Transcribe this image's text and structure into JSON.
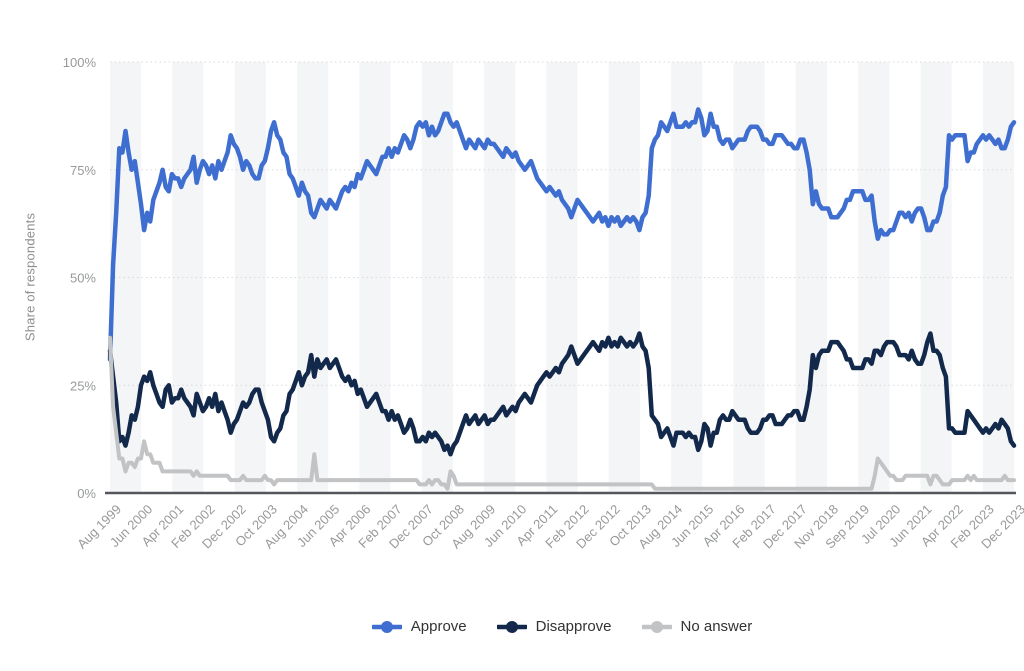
{
  "y_axis": {
    "title": "Share of respondents",
    "tick_labels": [
      "0%",
      "25%",
      "50%",
      "75%",
      "100%"
    ]
  },
  "chart_data": {
    "type": "line",
    "title": "",
    "xlabel": "",
    "ylabel": "Share of respondents",
    "ylim": [
      0,
      100
    ],
    "yticks": [
      0,
      25,
      50,
      75,
      100
    ],
    "grid": "horizontal-dotted",
    "background_bands": "alternating vertical stripes",
    "legend_position": "bottom-center",
    "x_range": "Aug 1999 - Dec 2023, monthly",
    "x_tick_labels": [
      "Aug 1999",
      "Jun 2000",
      "Apr 2001",
      "Feb 2002",
      "Dec 2002",
      "Oct 2003",
      "Aug 2004",
      "Jun 2005",
      "Apr 2006",
      "Feb 2007",
      "Dec 2007",
      "Oct 2008",
      "Aug 2009",
      "Jun 2010",
      "Apr 2011",
      "Feb 2012",
      "Dec 2012",
      "Oct 2013",
      "Aug 2014",
      "Jun 2015",
      "Apr 2016",
      "Feb 2017",
      "Dec 2017",
      "Nov 2018",
      "Sep 2019",
      "Jul 2020",
      "Jun 2021",
      "Apr 2022",
      "Feb 2023",
      "Dec 2023"
    ],
    "colors": {
      "band": "#f4f5f7",
      "grid": "#dadada",
      "axis": "#53575c",
      "tick_text": "#97999b",
      "legend_text": "#333333"
    },
    "series": [
      {
        "name": "Approve",
        "color": "#3e6fd0",
        "width": 4.5,
        "values": [
          31,
          53,
          65,
          80,
          79,
          84,
          79,
          75,
          77,
          72,
          67,
          61,
          65,
          63,
          68,
          70,
          72,
          75,
          71,
          70,
          74,
          73,
          73,
          71,
          73,
          74,
          75,
          78,
          72,
          75,
          77,
          76,
          74,
          76,
          73,
          77,
          75,
          77,
          79,
          83,
          81,
          80,
          78,
          75,
          77,
          76,
          74,
          73,
          73,
          76,
          77,
          80,
          84,
          86,
          83,
          82,
          79,
          78,
          74,
          73,
          71,
          69,
          72,
          70,
          69,
          65,
          64,
          66,
          68,
          67,
          66,
          68,
          67,
          66,
          68,
          70,
          71,
          70,
          72,
          71,
          74,
          73,
          75,
          77,
          76,
          75,
          74,
          76,
          78,
          78,
          80,
          78,
          80,
          79,
          81,
          83,
          82,
          80,
          82,
          85,
          86,
          85,
          86,
          83,
          85,
          83,
          84,
          86,
          88,
          88,
          86,
          85,
          86,
          84,
          82,
          80,
          82,
          81,
          80,
          82,
          81,
          80,
          82,
          81,
          81,
          80,
          79,
          78,
          80,
          79,
          78,
          79,
          77,
          76,
          75,
          76,
          77,
          75,
          73,
          72,
          71,
          70,
          71,
          70,
          69,
          70,
          68,
          67,
          66,
          64,
          66,
          68,
          67,
          66,
          65,
          64,
          63,
          64,
          65,
          63,
          64,
          62,
          64,
          63,
          64,
          62,
          63,
          64,
          63,
          64,
          63,
          61,
          64,
          65,
          69,
          80,
          82,
          83,
          86,
          85,
          84,
          86,
          88,
          85,
          85,
          85,
          86,
          85,
          86,
          86,
          89,
          87,
          83,
          84,
          88,
          85,
          85,
          82,
          81,
          82,
          82,
          80,
          81,
          82,
          82,
          82,
          84,
          85,
          85,
          85,
          84,
          82,
          82,
          81,
          81,
          83,
          83,
          83,
          82,
          81,
          81,
          80,
          80,
          82,
          82,
          79,
          75,
          67,
          70,
          67,
          66,
          66,
          66,
          64,
          64,
          64,
          65,
          66,
          68,
          68,
          70,
          70,
          70,
          70,
          68,
          68,
          69,
          63,
          59,
          61,
          60,
          60,
          61,
          61,
          63,
          65,
          65,
          64,
          65,
          63,
          65,
          66,
          66,
          64,
          61,
          61,
          63,
          63,
          65,
          69,
          71,
          83,
          82,
          83,
          83,
          83,
          83,
          77,
          79,
          79,
          81,
          82,
          83,
          82,
          83,
          82,
          81,
          82,
          80,
          80,
          82,
          85,
          86
        ]
      },
      {
        "name": "Disapprove",
        "color": "#13294b",
        "width": 4.5,
        "values": [
          33,
          27,
          21,
          12,
          13,
          11,
          14,
          18,
          17,
          20,
          25,
          27,
          26,
          28,
          25,
          23,
          21,
          20,
          24,
          25,
          21,
          22,
          22,
          24,
          22,
          21,
          20,
          18,
          23,
          21,
          19,
          20,
          22,
          20,
          23,
          19,
          21,
          19,
          17,
          14,
          16,
          17,
          19,
          21,
          20,
          21,
          23,
          24,
          24,
          21,
          19,
          17,
          13,
          12,
          14,
          15,
          18,
          19,
          23,
          24,
          26,
          28,
          25,
          27,
          28,
          32,
          27,
          31,
          29,
          30,
          31,
          29,
          30,
          31,
          29,
          27,
          26,
          27,
          25,
          26,
          23,
          24,
          22,
          20,
          21,
          22,
          23,
          21,
          19,
          19,
          17,
          19,
          17,
          18,
          16,
          14,
          15,
          17,
          15,
          12,
          12,
          13,
          12,
          14,
          13,
          14,
          13,
          12,
          10,
          11,
          9,
          11,
          12,
          14,
          16,
          18,
          16,
          17,
          18,
          16,
          17,
          18,
          16,
          17,
          17,
          18,
          19,
          20,
          18,
          19,
          20,
          19,
          21,
          22,
          23,
          22,
          21,
          23,
          25,
          26,
          27,
          28,
          27,
          28,
          29,
          28,
          30,
          31,
          32,
          34,
          32,
          30,
          31,
          32,
          33,
          34,
          35,
          34,
          33,
          35,
          34,
          36,
          34,
          35,
          34,
          36,
          35,
          34,
          35,
          34,
          35,
          37,
          34,
          33,
          29,
          18,
          17,
          16,
          13,
          14,
          15,
          13,
          11,
          14,
          14,
          14,
          13,
          14,
          13,
          13,
          10,
          12,
          16,
          15,
          11,
          14,
          14,
          17,
          18,
          17,
          17,
          19,
          18,
          17,
          17,
          17,
          15,
          14,
          14,
          14,
          15,
          17,
          17,
          18,
          18,
          16,
          16,
          16,
          17,
          18,
          18,
          19,
          19,
          17,
          17,
          20,
          24,
          32,
          29,
          32,
          33,
          33,
          33,
          35,
          35,
          35,
          34,
          33,
          31,
          31,
          29,
          29,
          29,
          29,
          31,
          31,
          30,
          33,
          33,
          32,
          34,
          35,
          35,
          35,
          34,
          32,
          32,
          32,
          31,
          33,
          31,
          30,
          30,
          32,
          35,
          37,
          33,
          33,
          32,
          29,
          27,
          15,
          15,
          14,
          14,
          14,
          14,
          19,
          18,
          17,
          16,
          15,
          14,
          15,
          14,
          15,
          16,
          15,
          17,
          16,
          15,
          12,
          11
        ]
      },
      {
        "name": "No answer",
        "color": "#c2c3c5",
        "width": 4,
        "values": [
          36,
          20,
          14,
          8,
          8,
          5,
          7,
          7,
          6,
          8,
          8,
          12,
          9,
          9,
          7,
          7,
          7,
          5,
          5,
          5,
          5,
          5,
          5,
          5,
          5,
          5,
          5,
          4,
          5,
          4,
          4,
          4,
          4,
          4,
          4,
          4,
          4,
          4,
          4,
          3,
          3,
          3,
          3,
          4,
          3,
          3,
          3,
          3,
          3,
          3,
          4,
          3,
          3,
          2,
          3,
          3,
          3,
          3,
          3,
          3,
          3,
          3,
          3,
          3,
          3,
          3,
          9,
          3,
          3,
          3,
          3,
          3,
          3,
          3,
          3,
          3,
          3,
          3,
          3,
          3,
          3,
          3,
          3,
          3,
          3,
          3,
          3,
          3,
          3,
          3,
          3,
          3,
          3,
          3,
          3,
          3,
          3,
          3,
          3,
          3,
          2,
          2,
          2,
          3,
          2,
          3,
          3,
          2,
          2,
          1,
          5,
          4,
          2,
          2,
          2,
          2,
          2,
          2,
          2,
          2,
          2,
          2,
          2,
          2,
          2,
          2,
          2,
          2,
          2,
          2,
          2,
          2,
          2,
          2,
          2,
          2,
          2,
          2,
          2,
          2,
          2,
          2,
          2,
          2,
          2,
          2,
          2,
          2,
          2,
          2,
          2,
          2,
          2,
          2,
          2,
          2,
          2,
          2,
          2,
          2,
          2,
          2,
          2,
          2,
          2,
          2,
          2,
          2,
          2,
          2,
          2,
          2,
          2,
          2,
          2,
          2,
          1,
          1,
          1,
          1,
          1,
          1,
          1,
          1,
          1,
          1,
          1,
          1,
          1,
          1,
          1,
          1,
          1,
          1,
          1,
          1,
          1,
          1,
          1,
          1,
          1,
          1,
          1,
          1,
          1,
          1,
          1,
          1,
          1,
          1,
          1,
          1,
          1,
          1,
          1,
          1,
          1,
          1,
          1,
          1,
          1,
          1,
          1,
          1,
          1,
          1,
          1,
          1,
          1,
          1,
          1,
          1,
          1,
          1,
          1,
          1,
          1,
          1,
          1,
          1,
          1,
          1,
          1,
          1,
          1,
          1,
          1,
          4,
          8,
          7,
          6,
          5,
          4,
          4,
          3,
          3,
          3,
          4,
          4,
          4,
          4,
          4,
          4,
          4,
          4,
          2,
          4,
          4,
          3,
          2,
          2,
          2,
          3,
          3,
          3,
          3,
          3,
          4,
          3,
          4,
          3,
          3,
          3,
          3,
          3,
          3,
          3,
          3,
          3,
          4,
          3,
          3,
          3
        ]
      }
    ]
  }
}
